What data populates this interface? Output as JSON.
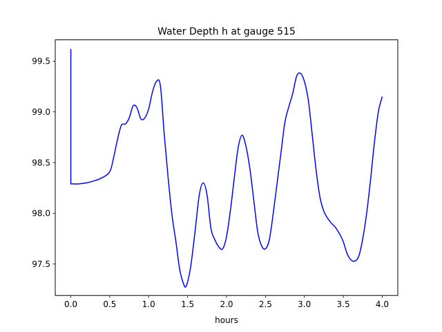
{
  "chart_data": {
    "type": "line",
    "title": "Water Depth h at gauge 515",
    "xlabel": "hours",
    "ylabel": "",
    "xlim": [
      -0.2,
      4.2
    ],
    "ylim": [
      97.19,
      99.71
    ],
    "xticks": [
      0.0,
      0.5,
      1.0,
      1.5,
      2.0,
      2.5,
      3.0,
      3.5,
      4.0
    ],
    "xtick_labels": [
      "0.0",
      "0.5",
      "1.0",
      "1.5",
      "2.0",
      "2.5",
      "3.0",
      "3.5",
      "4.0"
    ],
    "yticks": [
      97.5,
      98.0,
      98.5,
      99.0,
      99.5
    ],
    "ytick_labels": [
      "97.5",
      "98.0",
      "98.5",
      "99.0",
      "99.5"
    ],
    "grid": false,
    "series": [
      {
        "color": "#0000ff",
        "x": [
          0.0,
          0.0,
          0.0,
          0.1,
          0.2,
          0.3,
          0.4,
          0.5,
          0.55,
          0.6,
          0.65,
          0.7,
          0.75,
          0.8,
          0.85,
          0.9,
          0.95,
          1.0,
          1.05,
          1.1,
          1.15,
          1.2,
          1.25,
          1.3,
          1.35,
          1.4,
          1.45,
          1.48,
          1.52,
          1.55,
          1.6,
          1.65,
          1.7,
          1.75,
          1.8,
          1.85,
          1.9,
          1.95,
          2.0,
          2.05,
          2.1,
          2.15,
          2.2,
          2.25,
          2.3,
          2.35,
          2.4,
          2.45,
          2.5,
          2.55,
          2.6,
          2.65,
          2.7,
          2.75,
          2.8,
          2.85,
          2.9,
          2.95,
          3.0,
          3.05,
          3.1,
          3.15,
          3.2,
          3.25,
          3.3,
          3.35,
          3.4,
          3.45,
          3.5,
          3.55,
          3.6,
          3.65,
          3.7,
          3.75,
          3.8,
          3.85,
          3.9,
          3.95,
          4.0
        ],
        "y": [
          99.62,
          98.29,
          98.29,
          98.29,
          98.3,
          98.32,
          98.35,
          98.41,
          98.55,
          98.73,
          98.87,
          98.88,
          98.94,
          99.06,
          99.04,
          98.93,
          98.94,
          99.03,
          99.2,
          99.3,
          99.26,
          98.78,
          98.35,
          97.98,
          97.72,
          97.44,
          97.3,
          97.28,
          97.39,
          97.53,
          97.85,
          98.18,
          98.3,
          98.18,
          97.85,
          97.74,
          97.67,
          97.65,
          97.77,
          98.03,
          98.35,
          98.65,
          98.77,
          98.66,
          98.44,
          98.13,
          97.82,
          97.68,
          97.65,
          97.74,
          98.0,
          98.3,
          98.6,
          98.9,
          99.05,
          99.18,
          99.35,
          99.38,
          99.3,
          99.12,
          98.78,
          98.43,
          98.16,
          98.02,
          97.95,
          97.9,
          97.86,
          97.8,
          97.72,
          97.6,
          97.54,
          97.53,
          97.58,
          97.75,
          98.0,
          98.33,
          98.7,
          99.0,
          99.15
        ],
        "smooth_from": 2
      }
    ]
  }
}
